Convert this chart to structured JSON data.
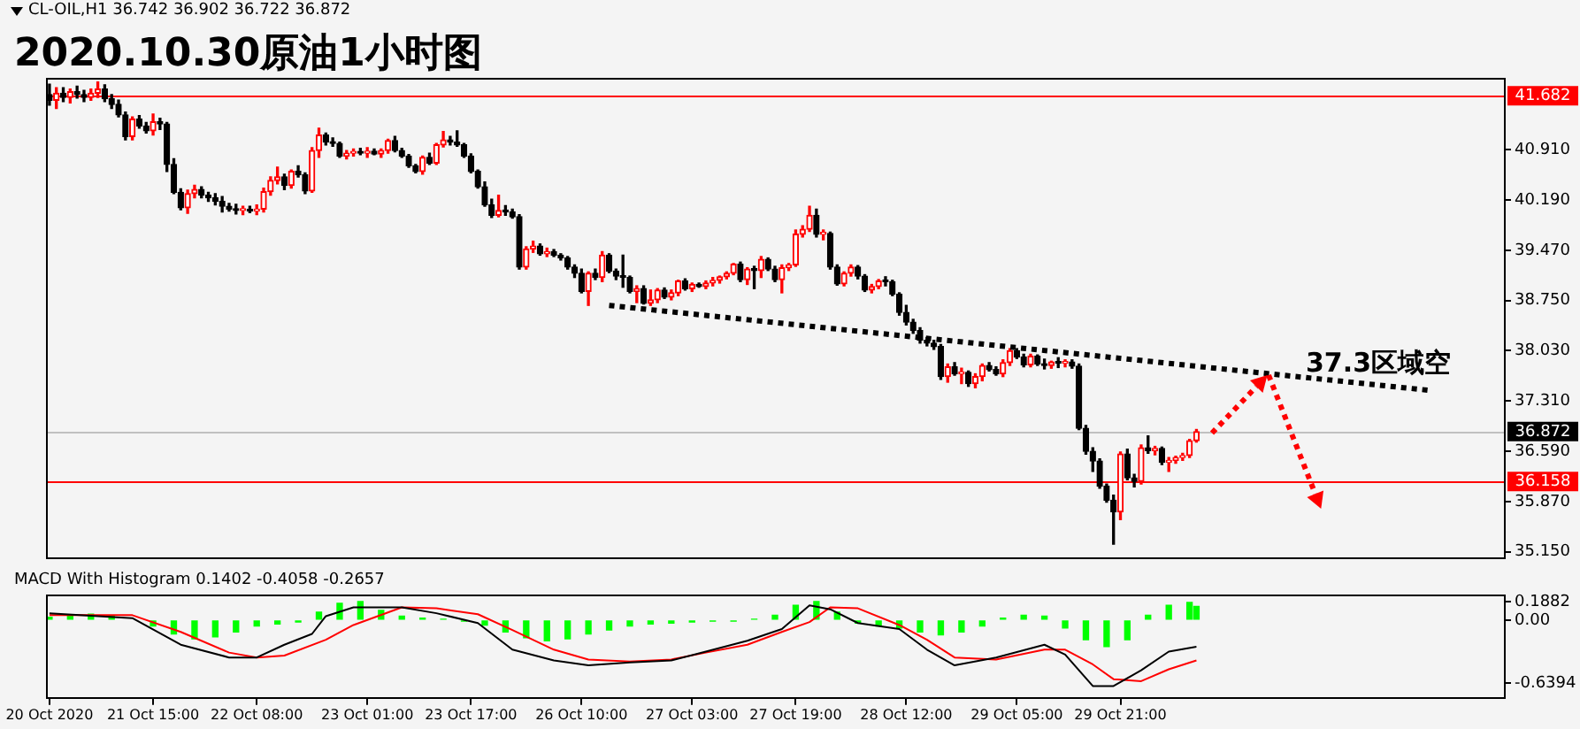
{
  "chart_data": [
    {
      "type": "candlestick",
      "title": "2020.10.30原油1小时图",
      "annotations": [
        "CL-OIL,H1 36.742 36.902 36.722 36.872",
        "37.3区域空"
      ],
      "categories": [
        null,
        null,
        null,
        null,
        null,
        null,
        null,
        null,
        null,
        null,
        null,
        null,
        null,
        null,
        null,
        null,
        null,
        null,
        null,
        null,
        null,
        null,
        null,
        null,
        null,
        null,
        null,
        null,
        null,
        null,
        null,
        null,
        null,
        null,
        null,
        null,
        null,
        null,
        null,
        null,
        null,
        null,
        null,
        null,
        null,
        null,
        null,
        null,
        null,
        null,
        null,
        null,
        null,
        null,
        null,
        null,
        null,
        null,
        null,
        null,
        null,
        null,
        null,
        null,
        null,
        null,
        null,
        null,
        null,
        null,
        null,
        null,
        null,
        null,
        null,
        null,
        null,
        null,
        null,
        null,
        null,
        null,
        null,
        null,
        null,
        null,
        null,
        null,
        null,
        null,
        null,
        null,
        null,
        null,
        null,
        null,
        null,
        null,
        null,
        null,
        null,
        null,
        null,
        null,
        null,
        null,
        null,
        null,
        null,
        null,
        null,
        null,
        null,
        null,
        null,
        null,
        null,
        null,
        null,
        null,
        null,
        null,
        null,
        null,
        null,
        null,
        null,
        null,
        null,
        null,
        null,
        null,
        null,
        null,
        null,
        null,
        null,
        null,
        null,
        null,
        null,
        null,
        null,
        null,
        null,
        null,
        null,
        null,
        null,
        null,
        null,
        null,
        null,
        null,
        null,
        null,
        null,
        null,
        null,
        null,
        null,
        null,
        null,
        null,
        null,
        null,
        null,
        null,
        null,
        null,
        null,
        null,
        null,
        null,
        null,
        null,
        null,
        null,
        null,
        null,
        null,
        null,
        null,
        null,
        null,
        null,
        null,
        null,
        null,
        null,
        null,
        null,
        null,
        null,
        null,
        null,
        null,
        null,
        null,
        null,
        null,
        null,
        null,
        null,
        null,
        null,
        null,
        null,
        null,
        null,
        null
      ],
      "ohlc": [
        [
          41.7,
          41.85,
          41.55,
          41.62
        ],
        [
          41.62,
          41.8,
          41.5,
          41.72
        ],
        [
          41.72,
          41.8,
          41.6,
          41.66
        ],
        [
          41.66,
          41.78,
          41.58,
          41.74
        ],
        [
          41.74,
          41.82,
          41.65,
          41.7
        ],
        [
          41.7,
          41.76,
          41.6,
          41.66
        ],
        [
          41.66,
          41.78,
          41.62,
          41.72
        ],
        [
          41.72,
          41.88,
          41.66,
          41.78
        ],
        [
          41.78,
          41.84,
          41.6,
          41.64
        ],
        [
          41.64,
          41.7,
          41.5,
          41.56
        ],
        [
          41.56,
          41.62,
          41.38,
          41.41
        ],
        [
          41.41,
          41.45,
          41.05,
          41.1
        ],
        [
          41.1,
          41.38,
          41.05,
          41.35
        ],
        [
          41.35,
          41.4,
          41.22,
          41.25
        ],
        [
          41.25,
          41.3,
          41.15,
          41.18
        ],
        [
          41.18,
          41.42,
          41.12,
          41.31
        ],
        [
          41.31,
          41.36,
          41.2,
          41.28
        ],
        [
          41.28,
          41.3,
          40.6,
          40.7
        ],
        [
          40.7,
          40.78,
          40.28,
          40.3
        ],
        [
          40.3,
          40.35,
          40.05,
          40.08
        ],
        [
          40.08,
          40.33,
          40.0,
          40.28
        ],
        [
          40.28,
          40.4,
          40.22,
          40.34
        ],
        [
          40.34,
          40.38,
          40.22,
          40.26
        ],
        [
          40.26,
          40.3,
          40.17,
          40.22
        ],
        [
          40.22,
          40.28,
          40.12,
          40.17
        ],
        [
          40.17,
          40.24,
          40.02,
          40.1
        ],
        [
          40.1,
          40.14,
          40.03,
          40.06
        ],
        [
          40.06,
          40.13,
          39.99,
          40.04
        ],
        [
          40.04,
          40.1,
          39.98,
          40.05
        ],
        [
          40.05,
          40.1,
          40.01,
          40.03
        ],
        [
          40.03,
          40.12,
          39.98,
          40.06
        ],
        [
          40.06,
          40.36,
          40.02,
          40.31
        ],
        [
          40.31,
          40.52,
          40.26,
          40.47
        ],
        [
          40.47,
          40.66,
          40.42,
          40.52
        ],
        [
          40.52,
          40.56,
          40.34,
          40.4
        ],
        [
          40.4,
          40.62,
          40.36,
          40.6
        ],
        [
          40.6,
          40.68,
          40.52,
          40.55
        ],
        [
          40.55,
          40.58,
          40.28,
          40.32
        ],
        [
          40.32,
          40.94,
          40.3,
          40.9
        ],
        [
          40.9,
          41.22,
          40.8,
          41.12
        ],
        [
          41.12,
          41.15,
          40.98,
          41.02
        ],
        [
          41.02,
          41.08,
          40.96,
          41.0
        ],
        [
          41.0,
          41.02,
          40.8,
          40.82
        ],
        [
          40.82,
          40.9,
          40.78,
          40.86
        ],
        [
          40.86,
          40.92,
          40.82,
          40.88
        ],
        [
          40.88,
          40.93,
          40.84,
          40.86
        ],
        [
          40.86,
          40.94,
          40.8,
          40.89
        ],
        [
          40.89,
          40.92,
          40.84,
          40.85
        ],
        [
          40.85,
          40.92,
          40.8,
          40.9
        ],
        [
          40.9,
          41.06,
          40.86,
          41.04
        ],
        [
          41.04,
          41.1,
          40.88,
          40.9
        ],
        [
          40.9,
          40.93,
          40.8,
          40.82
        ],
        [
          40.82,
          40.84,
          40.66,
          40.68
        ],
        [
          40.68,
          40.7,
          40.58,
          40.6
        ],
        [
          40.6,
          40.82,
          40.56,
          40.8
        ],
        [
          40.8,
          40.86,
          40.7,
          40.72
        ],
        [
          40.72,
          41.0,
          40.7,
          40.98
        ],
        [
          40.98,
          41.17,
          40.95,
          41.05
        ],
        [
          41.05,
          41.1,
          40.98,
          41.02
        ],
        [
          41.02,
          41.18,
          40.96,
          40.98
        ],
        [
          40.98,
          41.0,
          40.8,
          40.82
        ],
        [
          40.82,
          40.85,
          40.58,
          40.6
        ],
        [
          40.6,
          40.62,
          40.36,
          40.38
        ],
        [
          40.38,
          40.45,
          40.1,
          40.12
        ],
        [
          40.12,
          40.2,
          39.94,
          39.97
        ],
        [
          39.97,
          40.26,
          39.95,
          40.04
        ],
        [
          40.04,
          40.11,
          39.97,
          40.02
        ],
        [
          40.02,
          40.06,
          39.93,
          39.95
        ],
        [
          39.95,
          39.98,
          39.2,
          39.23
        ],
        [
          39.23,
          39.52,
          39.2,
          39.49
        ],
        [
          39.49,
          39.6,
          39.44,
          39.53
        ],
        [
          39.53,
          39.56,
          39.4,
          39.42
        ],
        [
          39.42,
          39.5,
          39.38,
          39.45
        ],
        [
          39.45,
          39.48,
          39.38,
          39.4
        ],
        [
          39.4,
          39.42,
          39.33,
          39.36
        ],
        [
          39.36,
          39.38,
          39.2,
          39.23
        ],
        [
          39.23,
          39.26,
          39.08,
          39.14
        ],
        [
          39.14,
          39.2,
          38.86,
          38.88
        ],
        [
          38.88,
          39.16,
          38.68,
          39.14
        ],
        [
          39.14,
          39.2,
          39.05,
          39.08
        ],
        [
          39.08,
          39.45,
          39.02,
          39.4
        ],
        [
          39.4,
          39.42,
          39.15,
          39.17
        ],
        [
          39.17,
          39.2,
          39.05,
          39.1
        ],
        [
          39.1,
          39.4,
          38.94,
          39.08
        ],
        [
          39.08,
          39.1,
          38.86,
          38.88
        ],
        [
          38.88,
          38.96,
          38.72,
          38.92
        ],
        [
          38.92,
          38.96,
          38.7,
          38.71
        ],
        [
          38.71,
          38.9,
          38.68,
          38.76
        ],
        [
          38.76,
          38.92,
          38.72,
          38.9
        ],
        [
          38.9,
          38.93,
          38.78,
          38.8
        ],
        [
          38.8,
          38.9,
          38.76,
          38.86
        ],
        [
          38.86,
          39.04,
          38.82,
          39.03
        ],
        [
          39.03,
          39.06,
          38.9,
          38.92
        ],
        [
          38.92,
          39.0,
          38.88,
          38.98
        ],
        [
          38.98,
          39.0,
          38.94,
          38.95
        ],
        [
          38.95,
          39.03,
          38.92,
          39.0
        ],
        [
          39.0,
          39.08,
          38.96,
          39.04
        ],
        [
          39.04,
          39.1,
          39.0,
          39.09
        ],
        [
          39.09,
          39.16,
          39.06,
          39.14
        ],
        [
          39.14,
          39.28,
          39.12,
          39.27
        ],
        [
          39.27,
          39.3,
          39.02,
          39.05
        ],
        [
          39.05,
          39.22,
          38.98,
          39.2
        ],
        [
          39.2,
          39.24,
          38.92,
          39.18
        ],
        [
          39.18,
          39.38,
          39.08,
          39.34
        ],
        [
          39.34,
          39.36,
          39.18,
          39.2
        ],
        [
          39.2,
          39.24,
          39.02,
          39.05
        ],
        [
          39.05,
          39.26,
          38.86,
          39.22
        ],
        [
          39.22,
          39.28,
          39.18,
          39.26
        ],
        [
          39.26,
          39.76,
          39.24,
          39.7
        ],
        [
          39.7,
          39.82,
          39.66,
          39.77
        ],
        [
          39.77,
          40.1,
          39.74,
          39.97
        ],
        [
          39.97,
          40.06,
          39.66,
          39.7
        ],
        [
          39.7,
          39.76,
          39.62,
          39.71
        ],
        [
          39.71,
          39.73,
          39.2,
          39.23
        ],
        [
          39.23,
          39.26,
          38.97,
          38.99
        ],
        [
          38.99,
          39.16,
          38.96,
          39.14
        ],
        [
          39.14,
          39.26,
          39.1,
          39.23
        ],
        [
          39.23,
          39.25,
          39.06,
          39.1
        ],
        [
          39.1,
          39.12,
          38.88,
          38.9
        ],
        [
          38.9,
          38.98,
          38.86,
          38.95
        ],
        [
          38.95,
          39.05,
          38.92,
          39.03
        ],
        [
          39.03,
          39.09,
          38.96,
          39.02
        ],
        [
          39.02,
          39.04,
          38.82,
          38.84
        ],
        [
          38.84,
          38.86,
          38.54,
          38.58
        ],
        [
          38.58,
          38.68,
          38.4,
          38.44
        ],
        [
          38.44,
          38.48,
          38.28,
          38.32
        ],
        [
          38.32,
          38.36,
          38.14,
          38.18
        ],
        [
          38.18,
          38.22,
          38.1,
          38.14
        ],
        [
          38.14,
          38.18,
          38.05,
          38.09
        ],
        [
          38.09,
          38.12,
          37.62,
          37.66
        ],
        [
          37.66,
          37.84,
          37.58,
          37.8
        ],
        [
          37.8,
          37.86,
          37.68,
          37.7
        ],
        [
          37.7,
          37.78,
          37.56,
          37.72
        ],
        [
          37.72,
          37.74,
          37.52,
          37.56
        ],
        [
          37.56,
          37.7,
          37.5,
          37.66
        ],
        [
          37.66,
          37.84,
          37.6,
          37.82
        ],
        [
          37.82,
          37.86,
          37.74,
          37.76
        ],
        [
          37.76,
          37.8,
          37.68,
          37.7
        ],
        [
          37.7,
          37.9,
          37.66,
          37.86
        ],
        [
          37.86,
          38.06,
          37.82,
          38.03
        ],
        [
          38.03,
          38.06,
          37.92,
          37.94
        ],
        [
          37.94,
          37.98,
          37.8,
          37.83
        ],
        [
          37.83,
          37.98,
          37.8,
          37.95
        ],
        [
          37.95,
          37.97,
          37.82,
          37.84
        ],
        [
          37.84,
          37.91,
          37.77,
          37.82
        ],
        [
          37.82,
          37.88,
          37.78,
          37.87
        ],
        [
          37.87,
          37.93,
          37.79,
          37.85
        ],
        [
          37.85,
          37.9,
          37.8,
          37.87
        ],
        [
          37.87,
          37.9,
          37.78,
          37.81
        ],
        [
          37.81,
          37.84,
          36.9,
          36.92
        ],
        [
          36.92,
          36.96,
          36.55,
          36.59
        ],
        [
          36.59,
          36.64,
          36.3,
          36.45
        ],
        [
          36.45,
          36.48,
          36.06,
          36.09
        ],
        [
          36.09,
          36.12,
          35.86,
          35.89
        ],
        [
          35.89,
          35.96,
          35.26,
          35.72
        ],
        [
          35.72,
          36.58,
          35.61,
          36.55
        ],
        [
          36.55,
          36.62,
          36.18,
          36.21
        ],
        [
          36.21,
          36.26,
          36.08,
          36.16
        ],
        [
          36.16,
          36.68,
          36.12,
          36.64
        ],
        [
          36.64,
          36.81,
          36.56,
          36.6
        ],
        [
          36.6,
          36.66,
          36.54,
          36.63
        ],
        [
          36.63,
          36.65,
          36.4,
          36.43
        ],
        [
          36.43,
          36.5,
          36.3,
          36.46
        ],
        [
          36.46,
          36.52,
          36.42,
          36.5
        ],
        [
          36.5,
          36.56,
          36.46,
          36.53
        ],
        [
          36.53,
          36.76,
          36.5,
          36.742
        ],
        [
          36.742,
          36.902,
          36.722,
          36.872
        ],
        null,
        null,
        null,
        null,
        null,
        null,
        null,
        null,
        null,
        null,
        null,
        null,
        null,
        null,
        null,
        null,
        null,
        null,
        null,
        null,
        null,
        null,
        null,
        null,
        null,
        null,
        null,
        null,
        null,
        null,
        null,
        null,
        null,
        null,
        null,
        null,
        null,
        null,
        null,
        null,
        null,
        null,
        null,
        null
      ],
      "series": [
        {
          "type": "line",
          "color": "#000000",
          "line_style": "dotted",
          "values": [
            null,
            null,
            null,
            null,
            null,
            null,
            null,
            null,
            null,
            null,
            null,
            null,
            null,
            null,
            null,
            null,
            null,
            null,
            null,
            null,
            null,
            null,
            null,
            null,
            null,
            null,
            null,
            null,
            null,
            null,
            null,
            null,
            null,
            null,
            null,
            null,
            null,
            null,
            null,
            null,
            null,
            null,
            null,
            null,
            null,
            null,
            null,
            null,
            null,
            null,
            null,
            null,
            null,
            null,
            null,
            null,
            null,
            null,
            null,
            null,
            null,
            null,
            null,
            null,
            null,
            null,
            null,
            null,
            null,
            null,
            null,
            null,
            null,
            null,
            null,
            null,
            null,
            null,
            null,
            null,
            null,
            38.68,
            null,
            null,
            null,
            null,
            null,
            null,
            null,
            null,
            null,
            null,
            null,
            null,
            null,
            null,
            null,
            null,
            null,
            null,
            null,
            null,
            null,
            null,
            null,
            null,
            null,
            null,
            null,
            null,
            null,
            null,
            null,
            null,
            null,
            null,
            null,
            null,
            null,
            null,
            null,
            null,
            null,
            null,
            null,
            null,
            null,
            null,
            null,
            null,
            null,
            null,
            null,
            null,
            null,
            null,
            null,
            null,
            null,
            null,
            null,
            null,
            null,
            null,
            null,
            null,
            null,
            null,
            null,
            null,
            null,
            null,
            null,
            null,
            null,
            null,
            null,
            null,
            null,
            null,
            null,
            null,
            null,
            null,
            null,
            null,
            null,
            null,
            null,
            null,
            null,
            null,
            null,
            null,
            null,
            null,
            null,
            null,
            null,
            null,
            null,
            null,
            null,
            null,
            null,
            null,
            null,
            null,
            null,
            null,
            null,
            null,
            null,
            null,
            null,
            null,
            null,
            null,
            null,
            null,
            37.46,
            null,
            null,
            null,
            null,
            null,
            null,
            null,
            null,
            null,
            null
          ]
        }
      ],
      "ylim": [
        35.08,
        41.94
      ],
      "yticks": [
        {
          "value": 35.15,
          "label": "35.150"
        },
        {
          "value": 35.87,
          "label": "35.870"
        },
        {
          "value": 36.59,
          "label": "36.590"
        },
        {
          "value": 37.31,
          "label": "37.310"
        },
        {
          "value": 38.03,
          "label": "38.030"
        },
        {
          "value": 38.75,
          "label": "38.750"
        },
        {
          "value": 39.47,
          "label": "39.470"
        },
        {
          "value": 40.19,
          "label": "40.190"
        },
        {
          "value": 40.91,
          "label": "40.910"
        }
      ],
      "tick_labels": "y",
      "ref_lines": [
        {
          "axis": "y",
          "value": 41.682,
          "label": "41.682",
          "color": "#ff0000"
        },
        {
          "axis": "y",
          "value": 36.872,
          "label": "36.872",
          "color": "#c0c0c0"
        },
        {
          "axis": "y",
          "value": 36.158,
          "label": "36.158",
          "color": "#ff0000"
        }
      ]
    },
    {
      "type": "line",
      "title": "MACD With Histogram 0.1402 -0.4058 -0.2657",
      "categories": [
        "20 Oct 2020",
        null,
        null,
        null,
        null,
        null,
        null,
        null,
        null,
        null,
        null,
        null,
        null,
        null,
        null,
        "21 Oct 15:00",
        null,
        null,
        null,
        null,
        null,
        null,
        null,
        null,
        null,
        null,
        null,
        null,
        null,
        null,
        "22 Oct 08:00",
        null,
        null,
        null,
        null,
        null,
        null,
        null,
        null,
        null,
        null,
        null,
        null,
        null,
        null,
        null,
        "23 Oct 01:00",
        null,
        null,
        null,
        null,
        null,
        null,
        null,
        null,
        null,
        null,
        null,
        null,
        null,
        null,
        "23 Oct 17:00",
        null,
        null,
        null,
        null,
        null,
        null,
        null,
        null,
        null,
        null,
        null,
        null,
        null,
        null,
        null,
        "26 Oct 10:00",
        null,
        null,
        null,
        null,
        null,
        null,
        null,
        null,
        null,
        null,
        null,
        null,
        null,
        null,
        null,
        "27 Oct 03:00",
        null,
        null,
        null,
        null,
        null,
        null,
        null,
        null,
        null,
        null,
        null,
        null,
        null,
        null,
        "27 Oct 19:00",
        null,
        null,
        null,
        null,
        null,
        null,
        null,
        null,
        null,
        null,
        null,
        null,
        null,
        null,
        null,
        "28 Oct 12:00",
        null,
        null,
        null,
        null,
        null,
        null,
        null,
        null,
        null,
        null,
        null,
        null,
        null,
        null,
        null,
        "29 Oct 05:00",
        null,
        null,
        null,
        null,
        null,
        null,
        null,
        null,
        null,
        null,
        null,
        null,
        null,
        null,
        "29 Oct 21:00",
        null,
        null,
        null,
        null,
        null,
        null,
        null,
        null,
        null,
        null,
        null,
        null,
        null,
        null,
        null,
        null,
        null,
        null,
        null,
        null,
        null,
        null,
        null,
        null,
        null,
        null,
        null,
        null,
        null,
        null,
        null,
        null,
        null,
        null,
        null,
        null,
        null,
        null,
        null,
        null,
        null,
        null,
        null,
        null,
        null,
        null,
        null,
        null,
        null,
        null,
        null,
        null,
        null,
        null,
        null
      ],
      "series": [
        {
          "type": "bar",
          "color": "#00ff00",
          "values": [
            0.03,
            null,
            null,
            0.05,
            null,
            null,
            0.06,
            null,
            null,
            0.04,
            null,
            null,
            null,
            null,
            null,
            -0.06,
            null,
            null,
            -0.14,
            null,
            null,
            -0.19,
            null,
            null,
            -0.17,
            null,
            null,
            -0.12,
            null,
            null,
            -0.06,
            null,
            null,
            -0.04,
            null,
            null,
            -0.02,
            null,
            null,
            0.08,
            null,
            null,
            0.17,
            null,
            null,
            0.19,
            null,
            null,
            0.1,
            null,
            null,
            0.04,
            null,
            null,
            0.02,
            null,
            null,
            0.01,
            null,
            null,
            -0.01,
            null,
            null,
            -0.05,
            null,
            null,
            -0.12,
            null,
            null,
            -0.18,
            null,
            null,
            -0.21,
            null,
            null,
            -0.19,
            null,
            null,
            -0.14,
            null,
            null,
            -0.1,
            null,
            null,
            -0.06,
            null,
            null,
            -0.04,
            null,
            null,
            -0.03,
            null,
            null,
            -0.02,
            null,
            null,
            -0.01,
            null,
            null,
            -0.01,
            null,
            null,
            0.01,
            null,
            null,
            0.05,
            null,
            null,
            0.15,
            null,
            null,
            0.19,
            null,
            null,
            0.08,
            null,
            null,
            -0.03,
            null,
            null,
            -0.06,
            null,
            null,
            -0.08,
            null,
            null,
            -0.12,
            null,
            null,
            -0.15,
            null,
            null,
            -0.12,
            null,
            null,
            -0.06,
            null,
            null,
            0.02,
            null,
            null,
            0.05,
            null,
            null,
            0.04,
            null,
            null,
            -0.08,
            null,
            null,
            -0.2,
            null,
            null,
            -0.27,
            null,
            null,
            -0.2,
            null,
            null,
            0.05,
            null,
            null,
            0.15,
            null,
            null,
            0.18,
            0.14,
            null,
            null,
            null,
            null,
            null,
            null,
            null,
            null,
            null,
            null,
            null,
            null,
            null,
            null,
            null,
            null,
            null,
            null,
            null,
            null,
            null,
            null,
            null,
            null,
            null,
            null,
            null,
            null,
            null,
            null,
            null,
            null,
            null,
            null,
            null,
            null,
            null,
            null,
            null,
            null,
            null,
            null,
            null,
            null
          ]
        },
        {
          "type": "line",
          "color": "#000000",
          "values": [
            0.07,
            null,
            null,
            null,
            null,
            null,
            null,
            null,
            null,
            null,
            null,
            null,
            0.02,
            null,
            null,
            null,
            null,
            null,
            null,
            -0.25,
            null,
            null,
            null,
            null,
            null,
            null,
            -0.38,
            null,
            null,
            null,
            -0.38,
            null,
            null,
            null,
            -0.25,
            null,
            null,
            null,
            -0.14,
            null,
            0.04,
            null,
            null,
            null,
            0.13,
            null,
            null,
            null,
            null,
            null,
            null,
            0.13,
            null,
            null,
            null,
            null,
            0.07,
            null,
            null,
            null,
            null,
            null,
            -0.03,
            null,
            null,
            null,
            null,
            -0.3,
            null,
            null,
            null,
            null,
            null,
            -0.41,
            null,
            null,
            null,
            null,
            -0.46,
            null,
            null,
            null,
            null,
            null,
            -0.43,
            null,
            null,
            null,
            null,
            null,
            -0.41,
            null,
            null,
            null,
            null,
            -0.32,
            null,
            null,
            null,
            null,
            null,
            -0.21,
            null,
            null,
            null,
            null,
            -0.09,
            null,
            null,
            null,
            0.15,
            null,
            null,
            0.11,
            null,
            null,
            null,
            -0.03,
            null,
            null,
            null,
            null,
            null,
            -0.09,
            null,
            null,
            null,
            -0.3,
            null,
            null,
            null,
            -0.46,
            null,
            null,
            null,
            null,
            null,
            -0.38,
            null,
            null,
            null,
            null,
            null,
            null,
            -0.25,
            null,
            null,
            -0.35,
            null,
            null,
            null,
            -0.67,
            null,
            null,
            -0.67,
            null,
            null,
            null,
            -0.51,
            null,
            null,
            null,
            -0.32,
            null,
            null,
            null,
            -0.27,
            null,
            null,
            null,
            null,
            null,
            null,
            null,
            null,
            null,
            null,
            null,
            null,
            null,
            null,
            null,
            null,
            null,
            null,
            null,
            null,
            null,
            null,
            null,
            null,
            null,
            null,
            null,
            null,
            null,
            null,
            null,
            null,
            null,
            null,
            null,
            null,
            null,
            null,
            null,
            null,
            null,
            null,
            null,
            null
          ]
        },
        {
          "type": "line",
          "color": "#ff0000",
          "values": [
            0.05,
            null,
            null,
            null,
            null,
            null,
            null,
            null,
            null,
            null,
            null,
            null,
            0.05,
            null,
            null,
            null,
            null,
            null,
            null,
            -0.12,
            null,
            null,
            null,
            null,
            null,
            null,
            -0.33,
            null,
            null,
            null,
            -0.38,
            null,
            null,
            null,
            -0.36,
            null,
            null,
            null,
            null,
            null,
            -0.2,
            null,
            null,
            null,
            -0.05,
            null,
            null,
            null,
            null,
            null,
            null,
            0.13,
            null,
            null,
            null,
            null,
            0.12,
            null,
            null,
            null,
            null,
            null,
            0.06,
            null,
            null,
            null,
            null,
            -0.1,
            null,
            null,
            null,
            null,
            null,
            -0.3,
            null,
            null,
            null,
            null,
            -0.4,
            null,
            null,
            null,
            null,
            null,
            -0.42,
            null,
            null,
            null,
            null,
            null,
            -0.4,
            null,
            null,
            null,
            null,
            -0.33,
            null,
            null,
            null,
            null,
            null,
            -0.25,
            null,
            null,
            null,
            null,
            -0.12,
            null,
            null,
            null,
            -0.02,
            null,
            null,
            0.13,
            null,
            null,
            null,
            0.12,
            null,
            null,
            null,
            null,
            null,
            -0.05,
            null,
            null,
            null,
            -0.2,
            null,
            null,
            null,
            -0.38,
            null,
            null,
            null,
            null,
            null,
            -0.4,
            null,
            null,
            null,
            null,
            null,
            null,
            -0.3,
            null,
            null,
            -0.3,
            null,
            null,
            null,
            -0.45,
            null,
            null,
            -0.6,
            null,
            null,
            null,
            -0.62,
            null,
            null,
            null,
            -0.5,
            null,
            null,
            null,
            -0.41,
            null,
            null,
            null,
            null,
            null,
            null,
            null,
            null,
            null,
            null,
            null,
            null,
            null,
            null,
            null,
            null,
            null,
            null,
            null,
            null,
            null,
            null,
            null,
            null,
            null,
            null,
            null,
            null,
            null,
            null,
            null,
            null,
            null,
            null,
            null,
            null,
            null,
            null,
            null,
            null,
            null,
            null,
            null,
            null
          ]
        }
      ],
      "ylim": [
        -0.79,
        0.26
      ],
      "yticks": [
        0.1882,
        {
          "value": 0,
          "label": "0.00"
        },
        -0.6394
      ]
    }
  ]
}
